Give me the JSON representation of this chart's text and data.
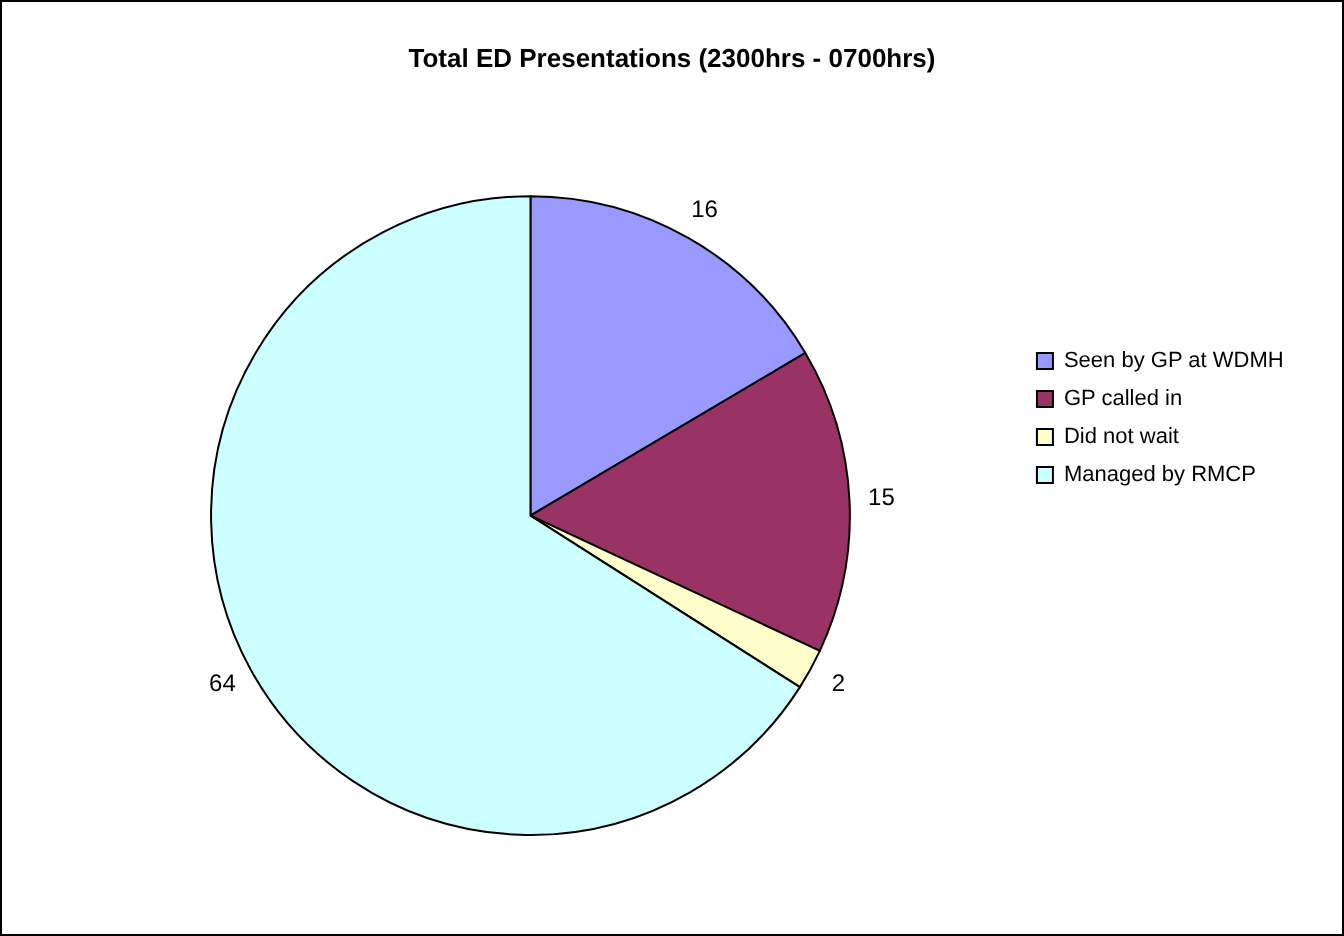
{
  "chart_data": {
    "type": "pie",
    "title": "Total ED Presentations (2300hrs - 0700hrs)",
    "categories": [
      "Seen by GP at WDMH",
      "GP called in",
      "Did not wait",
      "Managed by RMCP"
    ],
    "values": [
      16,
      15,
      2,
      64
    ],
    "colors": [
      "#9999ff",
      "#993366",
      "#ffffcc",
      "#ccffff"
    ],
    "data_labels": true,
    "legend": "right"
  }
}
